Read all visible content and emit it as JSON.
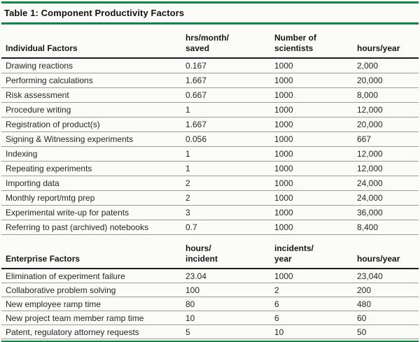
{
  "title": "Table 1: Component Productivity Factors",
  "colors": {
    "accent_green": "#0f8646",
    "text": "#262626",
    "divider_gray": "#9b9b9b",
    "heavy_rule": "#1c1c1c"
  },
  "sections": [
    {
      "id": "individual-factors",
      "header": {
        "factor_label": "Individual Factors",
        "col2": "hrs/month/\nsaved",
        "col3": "Number of\nscientists",
        "col4": "hours/year"
      },
      "rows": [
        {
          "factor": "Drawing reactions",
          "rate": "0.167",
          "count": "1000",
          "hours_year": "2,000"
        },
        {
          "factor": "Performing calculations",
          "rate": "1.667",
          "count": "1000",
          "hours_year": "20,000"
        },
        {
          "factor": "Risk assessment",
          "rate": "0.667",
          "count": "1000",
          "hours_year": "8,000"
        },
        {
          "factor": "Procedure writing",
          "rate": "1",
          "count": "1000",
          "hours_year": "12,000"
        },
        {
          "factor": "Registration of product(s)",
          "rate": "1.667",
          "count": "1000",
          "hours_year": "20,000"
        },
        {
          "factor": "Signing & Witnessing experiments",
          "rate": "0.056",
          "count": "1000",
          "hours_year": "667"
        },
        {
          "factor": "Indexing",
          "rate": "1",
          "count": "1000",
          "hours_year": "12,000"
        },
        {
          "factor": "Repeating experiments",
          "rate": "1",
          "count": "1000",
          "hours_year": "12,000"
        },
        {
          "factor": "Importing data",
          "rate": "2",
          "count": "1000",
          "hours_year": "24,000"
        },
        {
          "factor": "Monthly report/mtg prep",
          "rate": "2",
          "count": "1000",
          "hours_year": "24,000"
        },
        {
          "factor": "Experimental write-up for patents",
          "rate": "3",
          "count": "1000",
          "hours_year": "36,000"
        },
        {
          "factor": "Referring to past (archived) notebooks",
          "rate": "0.7",
          "count": "1000",
          "hours_year": "8,400"
        }
      ]
    },
    {
      "id": "enterprise-factors",
      "header": {
        "factor_label": "Enterprise Factors",
        "col2": "hours/\nincident",
        "col3": "incidents/\nyear",
        "col4": "hours/year"
      },
      "rows": [
        {
          "factor": "Elimination of experiment failure",
          "rate": "23.04",
          "count": "1000",
          "hours_year": "23,040"
        },
        {
          "factor": "Collaborative problem solving",
          "rate": "100",
          "count": "2",
          "hours_year": "200"
        },
        {
          "factor": "New employee ramp time",
          "rate": "80",
          "count": "6",
          "hours_year": "480"
        },
        {
          "factor": "New project team member ramp time",
          "rate": "10",
          "count": "6",
          "hours_year": "60"
        },
        {
          "factor": "Patent, regulatory attorney requests",
          "rate": "5",
          "count": "10",
          "hours_year": "50"
        }
      ]
    }
  ]
}
